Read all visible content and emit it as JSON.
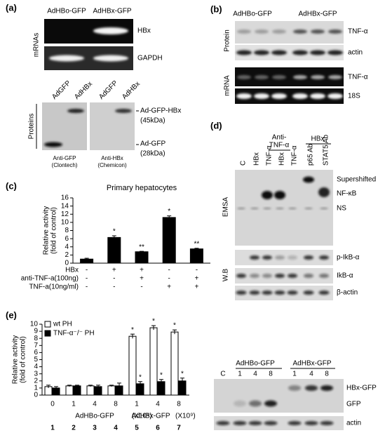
{
  "chart_data": [
    {
      "type": "bar",
      "title": "Primary hepatocytes",
      "y_label": [
        "Relative activity",
        "(fold of control)"
      ],
      "ylim": [
        0,
        16
      ],
      "yticks": [
        0,
        2,
        4,
        6,
        8,
        10,
        12,
        14,
        16
      ],
      "values": [
        1.0,
        6.3,
        2.8,
        11.2,
        3.5
      ],
      "errors": [
        0.2,
        0.4,
        0.1,
        0.4,
        0.15
      ],
      "annotations": [
        null,
        "*",
        "**",
        "*",
        "**"
      ],
      "color": "#000000",
      "conditions": [
        {
          "name": "HBx",
          "signs": [
            "-",
            "+",
            "+",
            "-",
            "-"
          ]
        },
        {
          "name": "anti-TNF-a(100ng)",
          "signs": [
            "-",
            "-",
            "+",
            "-",
            "+"
          ]
        },
        {
          "name": "TNF-a(10ng/ml)",
          "signs": [
            "-",
            "-",
            "-",
            "+",
            "+"
          ]
        }
      ]
    },
    {
      "type": "bar",
      "y_label": [
        "Relative activity",
        "(fold of control)"
      ],
      "ylim": [
        0,
        10
      ],
      "yticks": [
        0,
        1,
        2,
        3,
        4,
        5,
        6,
        7,
        8,
        9,
        10
      ],
      "categories": [
        "0",
        "1",
        "4",
        "8",
        "1",
        "4",
        "8"
      ],
      "series": [
        {
          "name": "wt  PH",
          "color": "#ffffff",
          "values": [
            1.2,
            1.3,
            1.3,
            1.3,
            8.3,
            9.5,
            8.9
          ],
          "errors": [
            0.2,
            0.1,
            0.1,
            0.1,
            0.3,
            0.3,
            0.3
          ],
          "annotations": [
            null,
            null,
            null,
            null,
            "*",
            "*",
            "*"
          ]
        },
        {
          "name": "TNF-α⁻/⁻ PH",
          "color": "#000000",
          "values": [
            1.0,
            1.3,
            1.2,
            1.3,
            1.6,
            1.9,
            2.0
          ],
          "errors": [
            0.2,
            0.1,
            0.2,
            0.4,
            0.3,
            0.3,
            0.4
          ],
          "annotations": [
            null,
            null,
            null,
            null,
            "*",
            "*",
            "*"
          ]
        }
      ],
      "groups": [
        "AdHBo-GFP",
        "(X10⁹)",
        "AdHBx-GFP",
        "(X10⁹)"
      ],
      "lane_numbers": [
        "1",
        "2",
        "3",
        "4",
        "5",
        "6",
        "7"
      ]
    }
  ],
  "panels": {
    "a": {
      "label": "(a)",
      "lanes": [
        "AdHBo-GFP",
        "AdHBx-GFP"
      ],
      "side": "mRNAs",
      "bands": [
        "HBx",
        "GAPDH"
      ],
      "protein_side": "Proteins",
      "protein_lanes": [
        "AdGFP",
        "AdHBx",
        "AdGFP",
        "AdHBx"
      ],
      "protein_bands": [
        "Ad-GFP-HBx",
        "(45kDa)",
        "Ad-GFP",
        "(28kDa)"
      ],
      "captions": [
        "Anti-GFP",
        "(Clontech)",
        "Anti-HBx",
        "(Chemicon)"
      ]
    },
    "b": {
      "label": "(b)",
      "lanes": [
        "AdHBo-GFP",
        "AdHBx-GFP"
      ],
      "sides": [
        "Protein",
        "mRNA"
      ],
      "bands": [
        "TNF-α",
        "actin",
        "TNF-α",
        "18S"
      ]
    },
    "c": {
      "label": "(c)"
    },
    "d": {
      "label": "(d)",
      "headers": [
        "Anti-",
        "TNF-α",
        "HBx"
      ],
      "lanes": [
        "C",
        "HBx",
        "TNF-α",
        "HBx",
        "TNF-α",
        "p65 Ab",
        "STAT5 Ab"
      ],
      "sides": [
        "EMSA",
        "W.B"
      ],
      "bands": [
        "Supershifted",
        "NF-κB",
        "NS",
        "p-IkB-α",
        "IkB-α",
        "β-actin"
      ]
    },
    "e": {
      "label": "(e)",
      "groups": [
        "AdHBo-GFP",
        "AdHBx-GFP"
      ],
      "lanes": [
        "C",
        "1",
        "4",
        "8",
        "1",
        "4",
        "8"
      ],
      "bands": [
        "HBx-GFP",
        "GFP",
        "actin"
      ]
    }
  }
}
